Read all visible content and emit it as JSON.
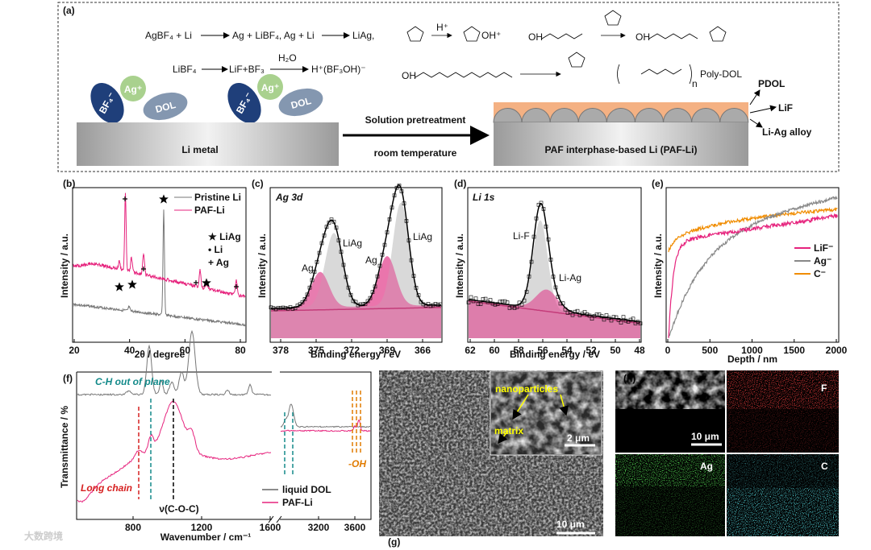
{
  "panel_a": {
    "label": "(a)",
    "eq1": [
      "AgBF₄ + Li",
      "Ag + LiBF₄, Ag + Li",
      "LiAg,"
    ],
    "eq2": [
      "LiBF₄",
      "LiF+BF₃",
      "H₂O",
      "H⁺(BF₃OH)⁻"
    ],
    "chem": {
      "acid": "H⁺",
      "oh1": "OH",
      "oh2": "OH",
      "oh3": "OH",
      "oxonium": "OH⁺",
      "poly": "Poly-DOL",
      "n": "n"
    },
    "ions": {
      "bf4": "BF₄⁻",
      "ag": "Ag⁺",
      "dol": "DOL"
    },
    "li_metal": "Li metal",
    "process": [
      "Solution pretreatment",
      "room temperature"
    ],
    "product": "PAF interphase-based Li (PAF-Li)",
    "layers": [
      "PDOL",
      "LiF",
      "Li-Ag alloy"
    ]
  },
  "panel_b": {
    "label": "(b)",
    "xlabel": "2θ / degree",
    "ylabel": "Intensity / a.u.",
    "xticks": [
      20,
      40,
      60,
      80
    ],
    "legend": [
      "Pristine Li",
      "PAF-Li"
    ],
    "markers": [
      "★ LiAg",
      "• Li",
      "+ Ag"
    ]
  },
  "panel_c": {
    "label": "(c)",
    "title": "Ag 3d",
    "xlabel": "Binding energy / eV",
    "ylabel": "Intensity / a.u.",
    "xticks": [
      378,
      375,
      372,
      369,
      366
    ],
    "peaks": [
      "Ag",
      "LiAg",
      "Ag",
      "LiAg"
    ]
  },
  "panel_d": {
    "label": "(d)",
    "title": "Li 1s",
    "xlabel": "Binding energy / eV",
    "ylabel": "Intensity / a.u.",
    "xticks": [
      62,
      60,
      58,
      56,
      54,
      52,
      50,
      48
    ],
    "peaks": [
      "Li-F",
      "Li-Ag"
    ]
  },
  "panel_e": {
    "label": "(e)",
    "xlabel": "Depth / nm",
    "ylabel": "Intensity / a.u.",
    "xticks": [
      0,
      500,
      1000,
      1500,
      2000
    ],
    "legend": [
      "LiF⁻",
      "Ag⁻",
      "C⁻"
    ]
  },
  "panel_f": {
    "label": "(f)",
    "xlabel": "Wavenumber / cm⁻¹",
    "ylabel": "Transmittance / %",
    "xticks": [
      800,
      1200,
      1600,
      3200,
      3600
    ],
    "notes": [
      "C-H out of plane",
      "Long chain",
      "ν(C-O-C)",
      "-OH"
    ],
    "legend": [
      "liquid DOL",
      "PAF-Li"
    ]
  },
  "panel_g": {
    "label": "(g)",
    "inset": [
      "nanoparticles",
      "matrix"
    ],
    "scale_inset": "2 μm",
    "scale": "10 μm"
  },
  "panel_h": {
    "label": "(h)",
    "scale": "10 μm",
    "maps": [
      "F",
      "Ag",
      "C"
    ]
  },
  "watermark": "大数跨境"
}
